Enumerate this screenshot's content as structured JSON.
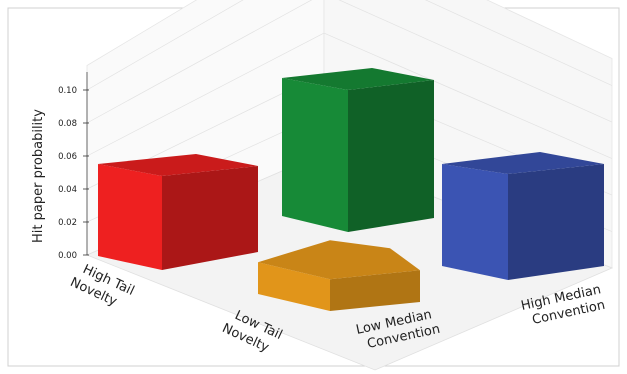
{
  "chart_data": {
    "type": "bar",
    "projection": "3d",
    "title": "",
    "ylabel": "Hit paper probability",
    "ylim": [
      0,
      0.11
    ],
    "yticks": [
      "0.00",
      "0.02",
      "0.04",
      "0.06",
      "0.08",
      "0.10"
    ],
    "grid": true,
    "x_axis_categories": [
      "High Tail Novelty",
      "Low Tail Novelty"
    ],
    "x_axis_labels": [
      [
        "High Tail",
        "Novelty"
      ],
      [
        "Low Tail",
        "Novelty"
      ]
    ],
    "z_axis_categories": [
      "Low Median Convention",
      "High Median Convention"
    ],
    "z_axis_labels": [
      [
        "Low Median",
        "Convention"
      ],
      [
        "High Median",
        "Convention"
      ]
    ],
    "bars": [
      {
        "novelty": "High Tail Novelty",
        "convention": "Low Median Convention",
        "value": 0.054,
        "color": "#ee2020"
      },
      {
        "novelty": "High Tail Novelty",
        "convention": "High Median Convention",
        "value": 0.107,
        "color": "#178a37"
      },
      {
        "novelty": "Low Tail Novelty",
        "convention": "Low Median Convention",
        "value": 0.012,
        "color": "#f5a21c"
      },
      {
        "novelty": "Low Tail Novelty",
        "convention": "High Median Convention",
        "value": 0.056,
        "color": "#3b54b3"
      }
    ]
  }
}
